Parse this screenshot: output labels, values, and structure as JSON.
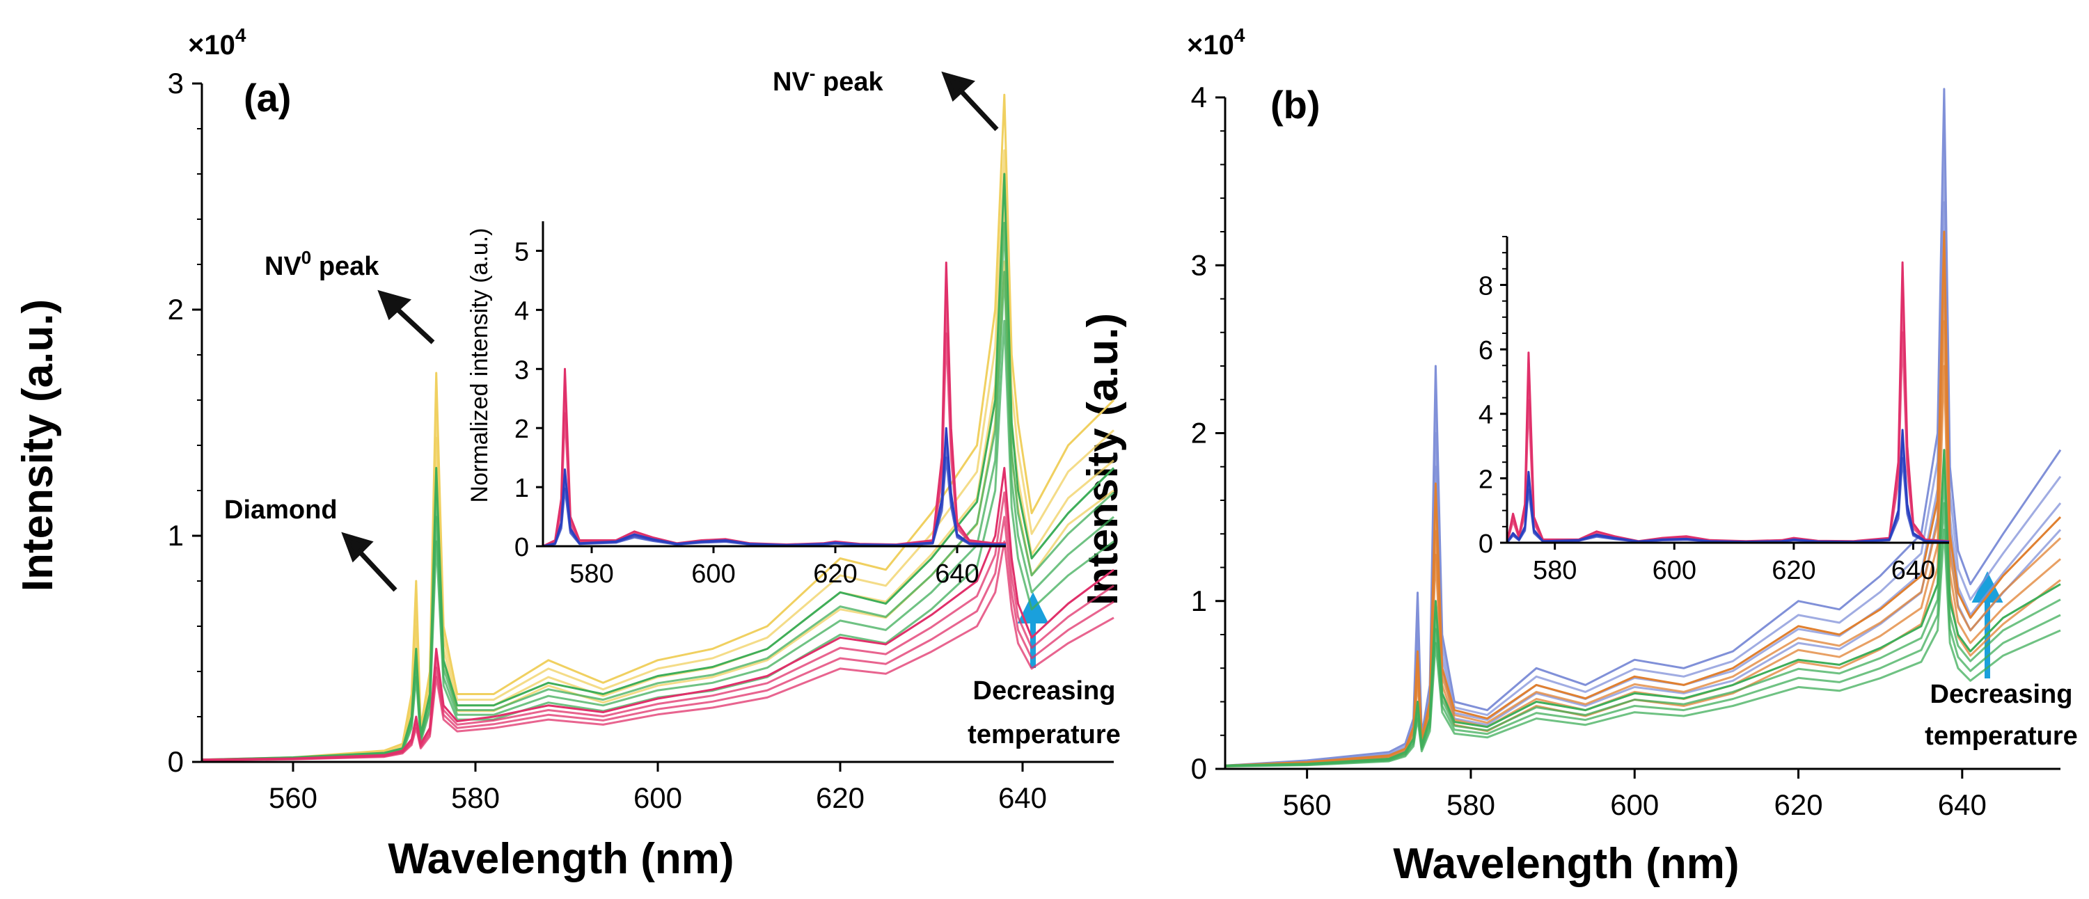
{
  "chart_data": [
    {
      "type": "line",
      "panel": "(a)",
      "title": "",
      "xlabel": "Wavelength (nm)",
      "ylabel": "Intensity (a.u.)",
      "y_multiplier": "×10",
      "y_multiplier_exp": "4",
      "xlim": [
        550,
        650
      ],
      "ylim": [
        0,
        3
      ],
      "xticks": [
        "560",
        "580",
        "600",
        "620",
        "640"
      ],
      "yticks": [
        "0",
        "1",
        "2",
        "3"
      ],
      "annotations": {
        "diamond": "Diamond",
        "nv0_base": "NV",
        "nv0_sup": "0",
        "nv0_rest": " peak",
        "nvm_base": "NV",
        "nvm_sup": "-",
        "nvm_rest": " peak",
        "temp_line1": "Decreasing",
        "temp_line2": "temperature"
      },
      "series_note": "Many overlaid spectra at different temperatures; representative envelope values in units of 10^4",
      "series": [
        {
          "name": "spectrum-high",
          "color": "#f0d060",
          "x": [
            550,
            560,
            570,
            572,
            573,
            573.5,
            574,
            575,
            575.7,
            576.5,
            578,
            582,
            588,
            594,
            600,
            606,
            612,
            620,
            625,
            630,
            635,
            637,
            638,
            638.8,
            639.5,
            641,
            645,
            650
          ],
          "y": [
            0.01,
            0.02,
            0.05,
            0.08,
            0.3,
            0.8,
            0.15,
            0.4,
            1.72,
            0.6,
            0.3,
            0.3,
            0.45,
            0.35,
            0.45,
            0.5,
            0.6,
            0.9,
            0.85,
            1.1,
            1.4,
            2.0,
            2.95,
            1.8,
            1.5,
            1.1,
            1.4,
            1.6
          ]
        },
        {
          "name": "spectrum-mid",
          "color": "#3fae5a",
          "x": [
            550,
            560,
            570,
            572,
            573,
            573.5,
            574,
            575,
            575.7,
            576.5,
            578,
            582,
            588,
            594,
            600,
            606,
            612,
            620,
            625,
            630,
            635,
            637,
            638,
            638.8,
            639.5,
            641,
            645,
            650
          ],
          "y": [
            0.01,
            0.02,
            0.04,
            0.06,
            0.2,
            0.5,
            0.12,
            0.3,
            1.3,
            0.45,
            0.25,
            0.25,
            0.35,
            0.3,
            0.38,
            0.42,
            0.5,
            0.75,
            0.7,
            0.9,
            1.15,
            1.6,
            2.6,
            1.5,
            1.2,
            0.9,
            1.1,
            1.3
          ]
        },
        {
          "name": "spectrum-low",
          "color": "#e0306a",
          "x": [
            550,
            560,
            570,
            572,
            573,
            573.5,
            574,
            575,
            575.7,
            576.5,
            578,
            582,
            588,
            594,
            600,
            606,
            612,
            620,
            625,
            630,
            635,
            637,
            638,
            638.8,
            639.5,
            641,
            645,
            650
          ],
          "y": [
            0.01,
            0.015,
            0.03,
            0.05,
            0.1,
            0.2,
            0.08,
            0.15,
            0.5,
            0.25,
            0.18,
            0.2,
            0.25,
            0.22,
            0.28,
            0.32,
            0.38,
            0.55,
            0.52,
            0.65,
            0.8,
            1.0,
            1.3,
            0.9,
            0.7,
            0.55,
            0.7,
            0.85
          ]
        }
      ],
      "inset": {
        "type": "line",
        "xlabel": "",
        "ylabel": "Normalized intensity (a.u.)",
        "xlim": [
          572,
          648
        ],
        "ylim": [
          0,
          5.5
        ],
        "xticks": [
          "580",
          "600",
          "620",
          "640"
        ],
        "yticks": [
          "0",
          "1",
          "2",
          "3",
          "4",
          "5"
        ],
        "series": [
          {
            "name": "norm-max",
            "color": "#e0306a",
            "x": [
              572,
              574,
              575,
              575.6,
              576.5,
              578,
              584,
              587,
              590,
              594,
              598,
              602,
              606,
              612,
              618,
              620,
              624,
              630,
              636,
              637.5,
              638.2,
              639,
              640,
              642,
              646,
              648
            ],
            "y": [
              0,
              0.1,
              0.8,
              3.0,
              0.5,
              0.1,
              0.1,
              0.25,
              0.15,
              0.05,
              0.1,
              0.12,
              0.05,
              0.03,
              0.05,
              0.08,
              0.04,
              0.03,
              0.1,
              1.5,
              4.8,
              2.0,
              0.4,
              0.1,
              0.05,
              0.05
            ]
          },
          {
            "name": "norm-min",
            "color": "#2a40c0",
            "x": [
              572,
              574,
              575,
              575.6,
              576.5,
              578,
              584,
              587,
              590,
              594,
              598,
              602,
              606,
              612,
              618,
              620,
              624,
              630,
              636,
              637.5,
              638.2,
              639,
              640,
              642,
              646,
              648
            ],
            "y": [
              0,
              0.05,
              0.4,
              1.3,
              0.3,
              0.05,
              0.08,
              0.2,
              0.12,
              0.04,
              0.08,
              0.1,
              0.04,
              0.02,
              0.04,
              0.06,
              0.03,
              0.02,
              0.06,
              0.8,
              2.0,
              0.9,
              0.2,
              0.05,
              0.03,
              0.03
            ]
          }
        ]
      }
    },
    {
      "type": "line",
      "panel": "(b)",
      "title": "",
      "xlabel": "Wavelength (nm)",
      "ylabel": "Intensity (a.u.)",
      "y_multiplier": "×10",
      "y_multiplier_exp": "4",
      "xlim": [
        550,
        652
      ],
      "ylim": [
        0,
        4
      ],
      "xticks": [
        "560",
        "580",
        "600",
        "620",
        "640"
      ],
      "yticks": [
        "0",
        "1",
        "2",
        "3",
        "4"
      ],
      "annotations": {
        "temp_line1": "Decreasing",
        "temp_line2": "temperature"
      },
      "series": [
        {
          "name": "spectrum-high",
          "color": "#8090d8",
          "x": [
            550,
            560,
            570,
            572,
            573,
            573.5,
            574,
            575,
            575.7,
            576.5,
            578,
            582,
            588,
            594,
            600,
            606,
            612,
            620,
            625,
            630,
            635,
            637,
            637.8,
            638.5,
            639.5,
            641,
            645,
            652
          ],
          "y": [
            0.02,
            0.05,
            0.1,
            0.15,
            0.3,
            1.05,
            0.2,
            0.5,
            2.4,
            0.8,
            0.4,
            0.35,
            0.6,
            0.5,
            0.65,
            0.6,
            0.7,
            1.0,
            0.95,
            1.15,
            1.4,
            2.0,
            4.05,
            1.8,
            1.3,
            1.1,
            1.4,
            1.9
          ]
        },
        {
          "name": "spectrum-mid",
          "color": "#e08030",
          "x": [
            550,
            560,
            570,
            572,
            573,
            573.5,
            574,
            575,
            575.7,
            576.5,
            578,
            582,
            588,
            594,
            600,
            606,
            612,
            620,
            625,
            630,
            635,
            637,
            637.8,
            638.5,
            639.5,
            641,
            645,
            652
          ],
          "y": [
            0.02,
            0.04,
            0.08,
            0.12,
            0.25,
            0.7,
            0.18,
            0.4,
            1.7,
            0.6,
            0.35,
            0.3,
            0.5,
            0.42,
            0.55,
            0.5,
            0.6,
            0.85,
            0.8,
            0.95,
            1.15,
            1.6,
            3.2,
            1.4,
            1.05,
            0.9,
            1.15,
            1.5
          ]
        },
        {
          "name": "spectrum-low",
          "color": "#3fae5a",
          "x": [
            550,
            560,
            570,
            572,
            573,
            573.5,
            574,
            575,
            575.7,
            576.5,
            578,
            582,
            588,
            594,
            600,
            606,
            612,
            620,
            625,
            630,
            635,
            637,
            637.8,
            638.5,
            639.5,
            641,
            645,
            652
          ],
          "y": [
            0.02,
            0.03,
            0.06,
            0.1,
            0.18,
            0.4,
            0.14,
            0.3,
            1.0,
            0.45,
            0.28,
            0.25,
            0.4,
            0.35,
            0.45,
            0.42,
            0.5,
            0.65,
            0.62,
            0.72,
            0.85,
            1.1,
            1.9,
            1.0,
            0.8,
            0.7,
            0.9,
            1.1
          ]
        }
      ],
      "inset": {
        "type": "line",
        "xlabel": "",
        "ylabel": "",
        "xlim": [
          572,
          646
        ],
        "ylim": [
          0,
          9.5
        ],
        "xticks": [
          "580",
          "600",
          "620",
          "640"
        ],
        "yticks": [
          "0",
          "2",
          "4",
          "6",
          "8"
        ],
        "series": [
          {
            "name": "norm-max",
            "color": "#e0306a",
            "x": [
              572,
              573,
              574,
              575,
              575.6,
              576.5,
              578,
              584,
              587,
              590,
              594,
              598,
              602,
              606,
              612,
              618,
              620,
              624,
              630,
              636,
              637.5,
              638.2,
              639,
              640,
              642,
              646
            ],
            "y": [
              0,
              0.9,
              0.2,
              1.2,
              5.9,
              0.8,
              0.1,
              0.1,
              0.35,
              0.2,
              0.05,
              0.15,
              0.2,
              0.08,
              0.05,
              0.08,
              0.15,
              0.06,
              0.05,
              0.15,
              2.5,
              8.7,
              3.0,
              0.6,
              0.1,
              0.05
            ]
          },
          {
            "name": "norm-min",
            "color": "#2a40c0",
            "x": [
              572,
              573,
              574,
              575,
              575.6,
              576.5,
              578,
              584,
              587,
              590,
              594,
              598,
              602,
              606,
              612,
              618,
              620,
              624,
              630,
              636,
              637.5,
              638.2,
              639,
              640,
              642,
              646
            ],
            "y": [
              0,
              0.3,
              0.1,
              0.5,
              2.2,
              0.4,
              0.05,
              0.08,
              0.25,
              0.15,
              0.04,
              0.1,
              0.12,
              0.05,
              0.03,
              0.05,
              0.1,
              0.04,
              0.03,
              0.1,
              1.0,
              3.5,
              1.2,
              0.3,
              0.06,
              0.03
            ]
          }
        ]
      }
    }
  ]
}
